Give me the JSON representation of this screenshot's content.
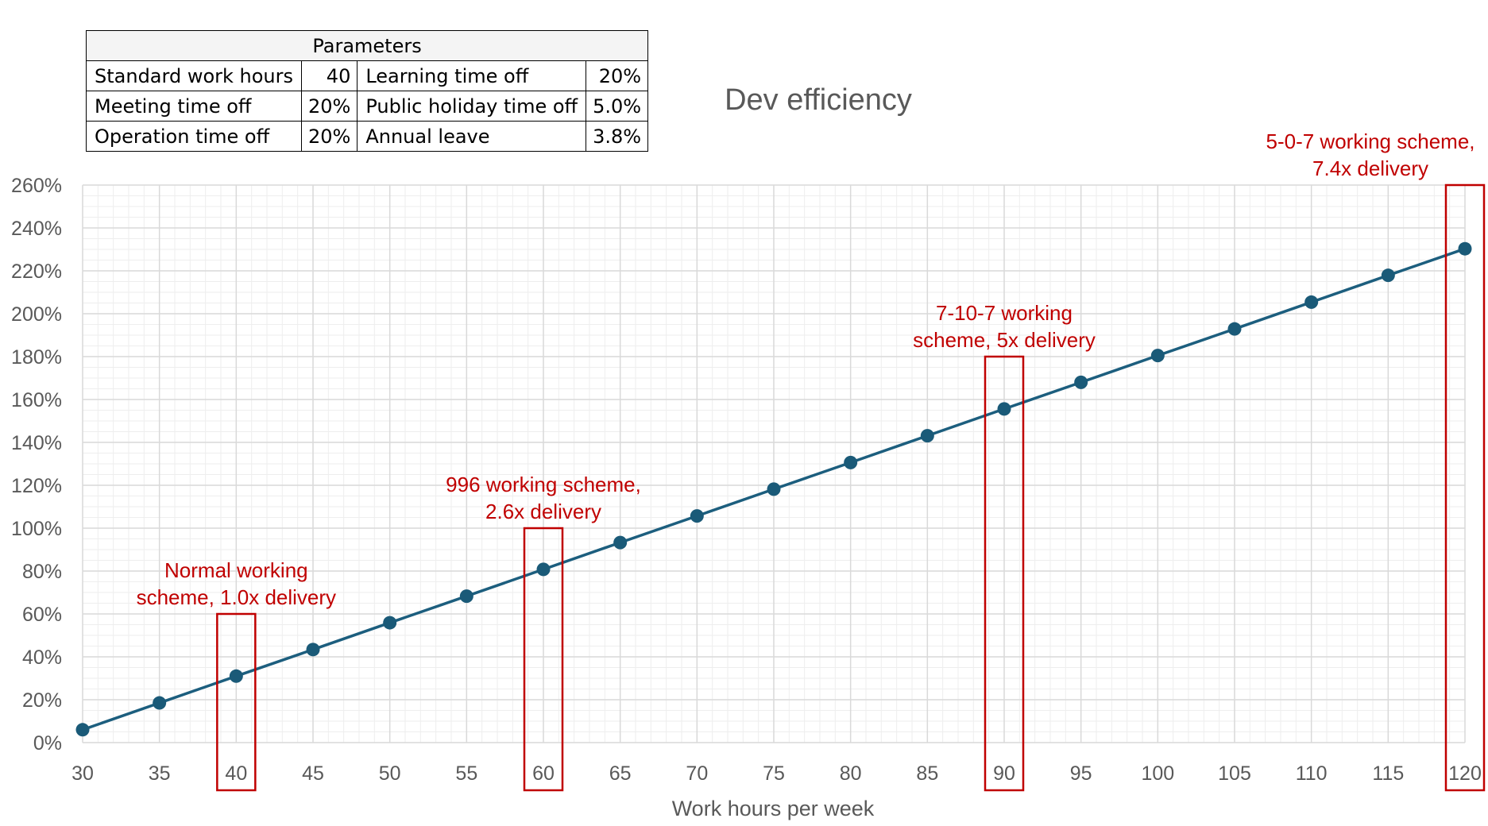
{
  "parameters": {
    "title": "Parameters",
    "rows": [
      [
        {
          "label": "Standard work hours",
          "value": "40"
        },
        {
          "label": "Learning time off",
          "value": "20%"
        }
      ],
      [
        {
          "label": "Meeting time off",
          "value": "20%"
        },
        {
          "label": "Public holiday time off",
          "value": "5.0%"
        }
      ],
      [
        {
          "label": "Operation time off",
          "value": "20%"
        },
        {
          "label": "Annual leave",
          "value": "3.8%"
        }
      ]
    ]
  },
  "chart_data": {
    "type": "line",
    "title": "Dev efficiency",
    "xlabel": "Work hours per week",
    "ylabel": "",
    "x": [
      30,
      35,
      40,
      45,
      50,
      55,
      60,
      65,
      70,
      75,
      80,
      85,
      90,
      95,
      100,
      105,
      110,
      115,
      120
    ],
    "series": [
      {
        "name": "",
        "values": [
          6.0,
          18.5,
          31.0,
          43.4,
          55.9,
          68.3,
          80.8,
          93.3,
          105.7,
          118.2,
          130.6,
          143.1,
          155.6,
          168.0,
          180.5,
          192.9,
          205.4,
          217.9,
          230.3
        ]
      }
    ],
    "xlim": [
      30,
      120
    ],
    "ylim": [
      0,
      260
    ],
    "x_ticks": [
      "30",
      "35",
      "40",
      "45",
      "50",
      "55",
      "60",
      "65",
      "70",
      "75",
      "80",
      "85",
      "90",
      "95",
      "100",
      "105",
      "110",
      "115",
      "120"
    ],
    "y_ticks": [
      {
        "value": 0,
        "label": "0%"
      },
      {
        "value": 20,
        "label": "20%"
      },
      {
        "value": 40,
        "label": "40%"
      },
      {
        "value": 60,
        "label": "60%"
      },
      {
        "value": 80,
        "label": "80%"
      },
      {
        "value": 100,
        "label": "100%"
      },
      {
        "value": 120,
        "label": "120%"
      },
      {
        "value": 140,
        "label": "140%"
      },
      {
        "value": 160,
        "label": "160%"
      },
      {
        "value": 180,
        "label": "180%"
      },
      {
        "value": 200,
        "label": "200%"
      },
      {
        "value": 220,
        "label": "220%"
      },
      {
        "value": 240,
        "label": "240%"
      },
      {
        "value": 260,
        "label": "260%"
      }
    ],
    "grid": true,
    "legend": "none",
    "annotations": [
      {
        "x": 40,
        "lines": [
          "Normal working",
          "scheme, 1.0x delivery"
        ],
        "box_top": 60
      },
      {
        "x": 60,
        "lines": [
          "996 working scheme,",
          "2.6x delivery"
        ],
        "box_top": 100
      },
      {
        "x": 90,
        "lines": [
          "7-10-7 working",
          "scheme, 5x delivery"
        ],
        "box_top": 180
      },
      {
        "x": 120,
        "lines": [
          "5-0-7 working scheme,",
          "7.4x delivery"
        ],
        "box_top": 260
      }
    ],
    "colors": {
      "line": "#1c5e7e",
      "marker": "#1a5a78",
      "annotation": "#c00000",
      "grid_major": "#d9d9d9",
      "grid_minor": "#eeeeee",
      "tick_text": "#595959",
      "title_text": "#595959"
    }
  }
}
